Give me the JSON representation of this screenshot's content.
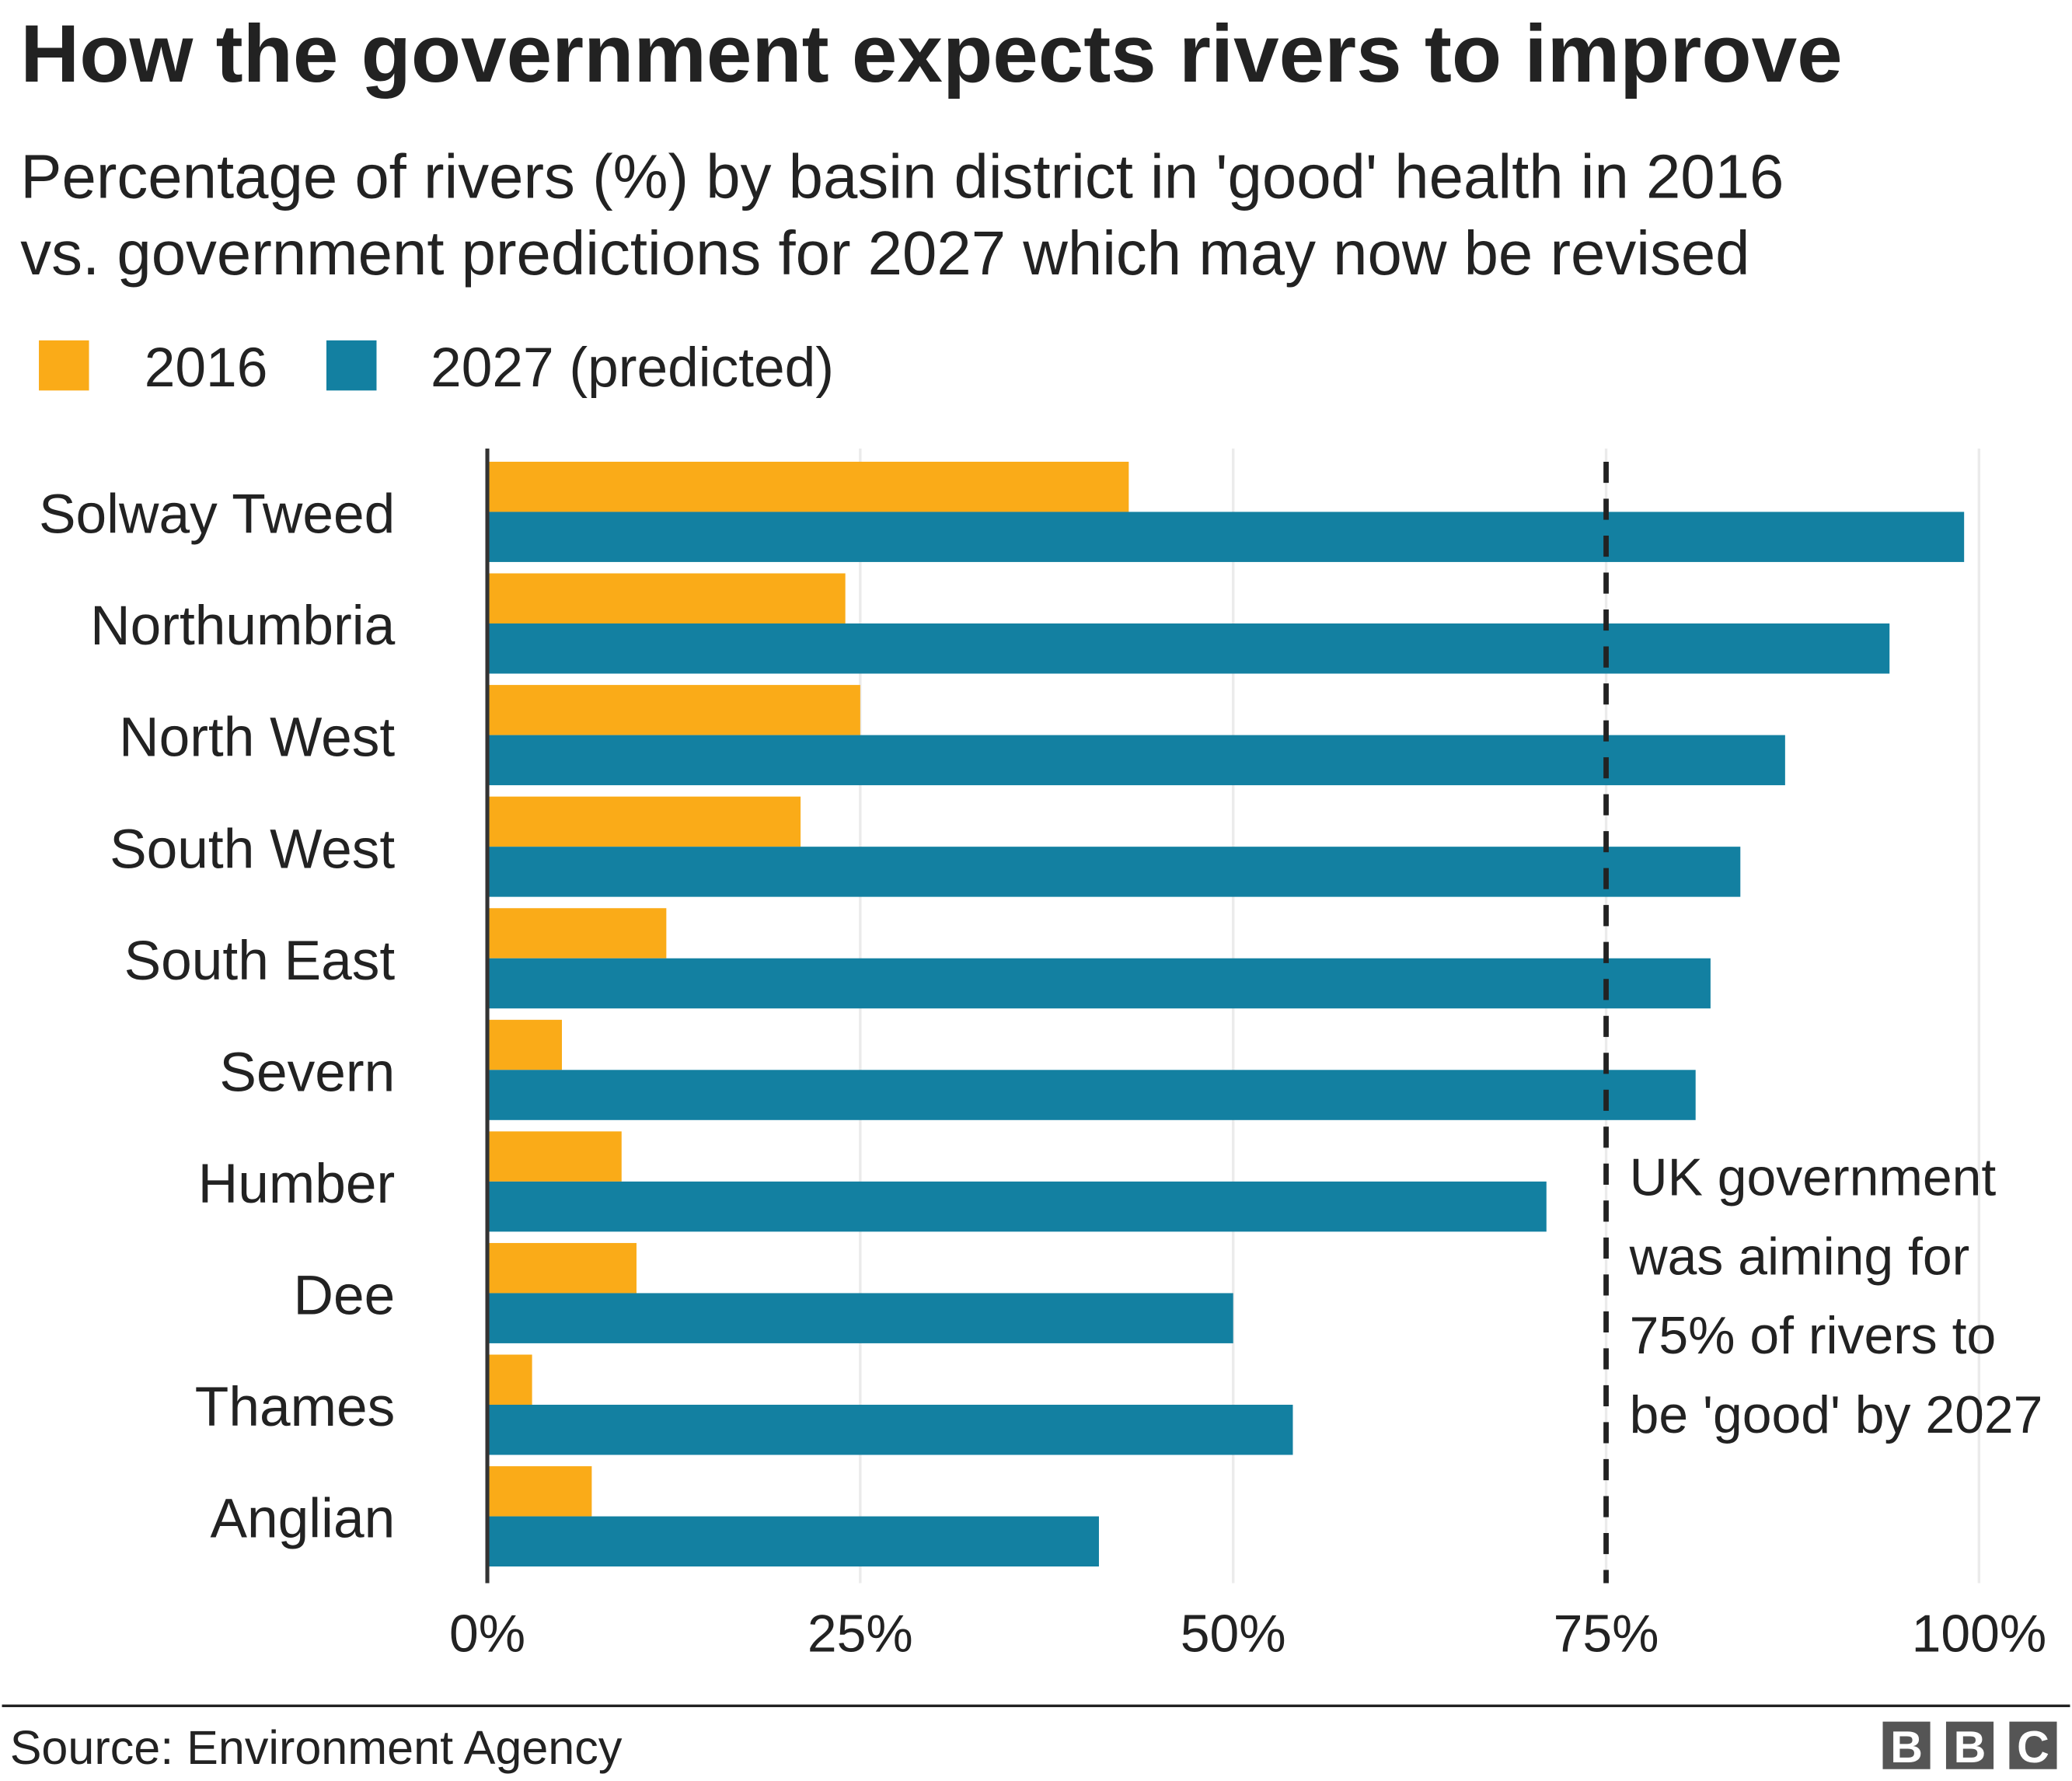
{
  "chart_data": {
    "type": "bar",
    "orientation": "horizontal",
    "title": "How the government expects rivers to improve",
    "subtitle": [
      "Percentage of rivers (%) by basin district in 'good' health in 2016",
      "vs. government predictions for 2027 which may now be revised"
    ],
    "categories": [
      "Solway Tweed",
      "Northumbria",
      "North West",
      "South West",
      "South East",
      "Severn",
      "Humber",
      "Dee",
      "Thames",
      "Anglian"
    ],
    "series": [
      {
        "name": "2016",
        "color": "#FAAB18",
        "values": [
          43,
          24,
          25,
          21,
          12,
          5,
          9,
          10,
          3,
          7
        ]
      },
      {
        "name": "2027 (predicted)",
        "color": "#1380A1",
        "values": [
          99,
          94,
          87,
          84,
          82,
          81,
          71,
          50,
          54,
          41
        ]
      }
    ],
    "xlim": [
      0,
      100
    ],
    "xticks": [
      "0%",
      "25%",
      "50%",
      "75%",
      "100%"
    ],
    "xtick_values": [
      0,
      25,
      50,
      75,
      100
    ],
    "grid": true,
    "legend_position": "top-left",
    "reference_line": {
      "value": 75,
      "style": "dashed"
    },
    "annotation": [
      "UK government",
      "was aiming for",
      "75% of rivers to",
      "be 'good' by 2027"
    ]
  },
  "source": "Source: Environment Agency",
  "logo": "BBC"
}
